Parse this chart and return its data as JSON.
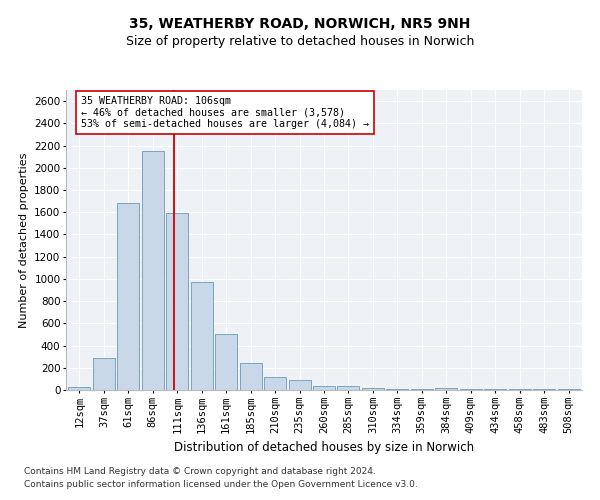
{
  "title1": "35, WEATHERBY ROAD, NORWICH, NR5 9NH",
  "title2": "Size of property relative to detached houses in Norwich",
  "xlabel": "Distribution of detached houses by size in Norwich",
  "ylabel": "Number of detached properties",
  "categories": [
    "12sqm",
    "37sqm",
    "61sqm",
    "86sqm",
    "111sqm",
    "136sqm",
    "161sqm",
    "185sqm",
    "210sqm",
    "235sqm",
    "260sqm",
    "285sqm",
    "310sqm",
    "334sqm",
    "359sqm",
    "384sqm",
    "409sqm",
    "434sqm",
    "458sqm",
    "483sqm",
    "508sqm"
  ],
  "values": [
    25,
    290,
    1680,
    2150,
    1590,
    970,
    500,
    245,
    115,
    90,
    35,
    35,
    20,
    10,
    5,
    20,
    5,
    5,
    10,
    5,
    5
  ],
  "bar_color": "#c8d8e8",
  "bar_edge_color": "#6a9ab8",
  "vline_x_index": 3.85,
  "vline_color": "#cc0000",
  "annotation_text": "35 WEATHERBY ROAD: 106sqm\n← 46% of detached houses are smaller (3,578)\n53% of semi-detached houses are larger (4,084) →",
  "annotation_box_color": "#ffffff",
  "annotation_box_edge": "#cc0000",
  "ylim": [
    0,
    2700
  ],
  "yticks": [
    0,
    200,
    400,
    600,
    800,
    1000,
    1200,
    1400,
    1600,
    1800,
    2000,
    2200,
    2400,
    2600
  ],
  "footnote1": "Contains HM Land Registry data © Crown copyright and database right 2024.",
  "footnote2": "Contains public sector information licensed under the Open Government Licence v3.0.",
  "title1_fontsize": 10,
  "title2_fontsize": 9,
  "xlabel_fontsize": 8.5,
  "ylabel_fontsize": 8,
  "tick_fontsize": 7.5,
  "footnote_fontsize": 6.5,
  "bg_color": "#eef2f7"
}
